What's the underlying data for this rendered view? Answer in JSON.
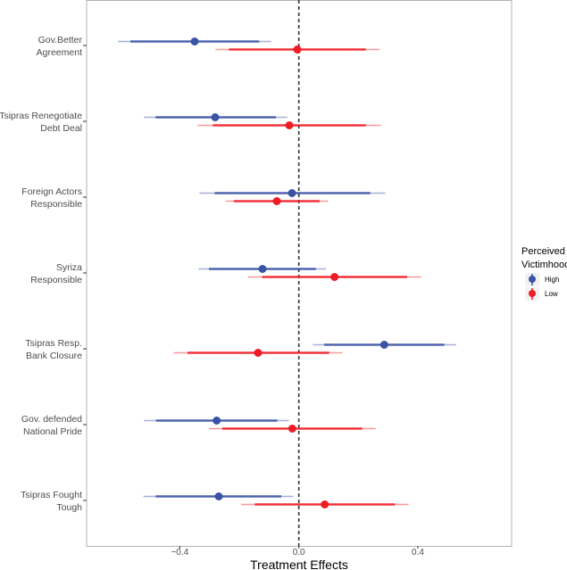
{
  "chart_data": {
    "type": "scatter",
    "subtype": "coefficient plot with intervals",
    "title": "",
    "xlabel": "Treatment Effects",
    "ylabel": "",
    "xlim": [
      -0.713,
      0.715
    ],
    "xticks": [
      -0.4,
      0.0,
      0.4
    ],
    "xtick_labels": [
      "−0.4",
      "0.0",
      "0.4"
    ],
    "reference_line": {
      "x": 0,
      "style": "dashed"
    },
    "grid": false,
    "categories": [
      [
        "Gov.Better",
        "Agreement"
      ],
      [
        "Tsipras Renegotiate",
        "Debt Deal"
      ],
      [
        "Foreign Actors",
        "Responsible"
      ],
      [
        "Syriza",
        "Responsible"
      ],
      [
        "Tsipras Resp.",
        "Bank Closure"
      ],
      [
        "Gov. defended",
        "National Pride"
      ],
      [
        "Tsipras Fought",
        "Tough"
      ]
    ],
    "legend": {
      "title": [
        "Perceived",
        "Victimhood"
      ],
      "placement": "right"
    },
    "series": [
      {
        "name": "High",
        "color": "#3a53a4",
        "estimate": [
          -0.35,
          -0.281,
          -0.023,
          -0.122,
          0.287,
          -0.276,
          -0.269
        ],
        "inner_low": [
          -0.566,
          -0.481,
          -0.283,
          -0.302,
          0.085,
          -0.48,
          -0.481
        ],
        "inner_high": [
          -0.133,
          -0.077,
          0.24,
          0.057,
          0.489,
          -0.072,
          -0.059
        ],
        "outer_low": [
          -0.608,
          -0.52,
          -0.334,
          -0.337,
          0.047,
          -0.52,
          -0.522
        ],
        "outer_high": [
          -0.093,
          -0.039,
          0.291,
          0.092,
          0.528,
          -0.033,
          -0.019
        ]
      },
      {
        "name": "Low",
        "color": "#ee1c25",
        "estimate": [
          -0.005,
          -0.032,
          -0.074,
          0.12,
          -0.137,
          -0.022,
          0.087
        ],
        "inner_low": [
          -0.235,
          -0.289,
          -0.218,
          -0.123,
          -0.374,
          -0.257,
          -0.148
        ],
        "inner_high": [
          0.225,
          0.225,
          0.07,
          0.364,
          0.102,
          0.213,
          0.323
        ],
        "outer_low": [
          -0.28,
          -0.34,
          -0.245,
          -0.171,
          -0.421,
          -0.302,
          -0.194
        ],
        "outer_high": [
          0.271,
          0.275,
          0.098,
          0.411,
          0.147,
          0.258,
          0.369
        ]
      }
    ]
  }
}
